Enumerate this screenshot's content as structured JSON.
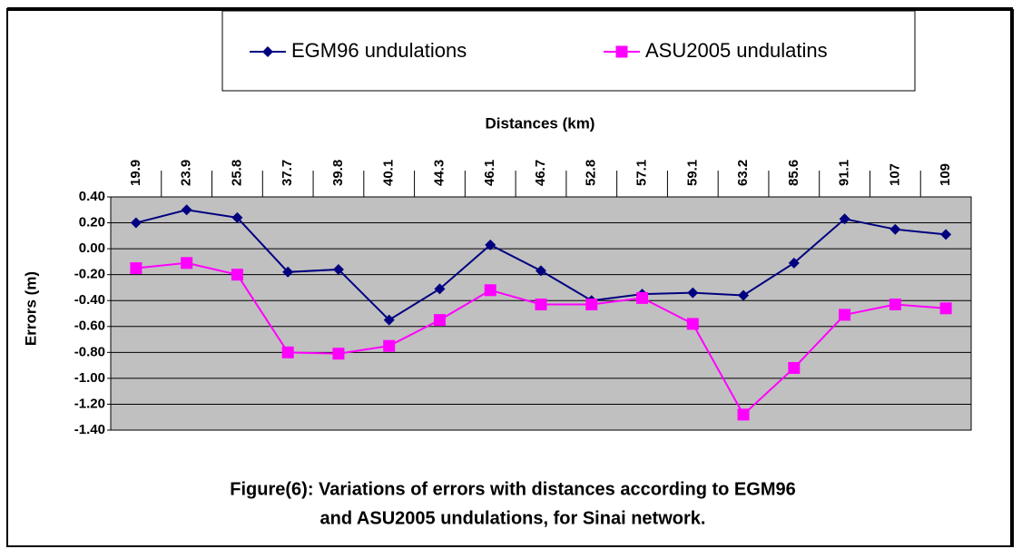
{
  "chart_data": {
    "type": "line",
    "legend_position": "top",
    "x_axis_label": "Distances (km)",
    "y_axis_label": "Errors (m)",
    "caption": [
      "Figure(6): Variations of errors with distances according to EGM96",
      "and ASU2005 undulations, for Sinai network."
    ],
    "categories": [
      "19.9",
      "23.9",
      "25.8",
      "37.7",
      "39.8",
      "40.1",
      "44.3",
      "46.1",
      "46.7",
      "52.8",
      "57.1",
      "59.1",
      "63.2",
      "85.6",
      "91.1",
      "107",
      "109"
    ],
    "series": [
      {
        "name": "EGM96 undulations",
        "color": "#000080",
        "marker": "diamond",
        "values": [
          0.2,
          0.3,
          0.24,
          -0.18,
          -0.16,
          -0.55,
          -0.31,
          0.03,
          -0.17,
          -0.4,
          -0.35,
          -0.34,
          -0.36,
          -0.11,
          0.23,
          0.15,
          0.11
        ]
      },
      {
        "name": "ASU2005 undulatins",
        "color": "#ff00ff",
        "marker": "square",
        "values": [
          -0.15,
          -0.11,
          -0.2,
          -0.8,
          -0.81,
          -0.75,
          -0.55,
          -0.32,
          -0.43,
          -0.43,
          -0.38,
          -0.58,
          -1.28,
          -0.92,
          -0.51,
          -0.43,
          -0.46
        ]
      }
    ],
    "ylim": [
      -1.4,
      0.4
    ],
    "yticks": [
      {
        "value": 0.4,
        "label": "0.40"
      },
      {
        "value": 0.2,
        "label": "0.20"
      },
      {
        "value": 0,
        "label": "0.00"
      },
      {
        "value": -0.2,
        "label": "-0.20"
      },
      {
        "value": -0.4,
        "label": "-0.40"
      },
      {
        "value": -0.6,
        "label": "-0.60"
      },
      {
        "value": -0.8,
        "label": "-0.80"
      },
      {
        "value": -1,
        "label": "-1.00"
      },
      {
        "value": -1.2,
        "label": "-1.20"
      },
      {
        "value": -1.4,
        "label": "-1.40"
      }
    ],
    "grid": true,
    "plot_background": "#c0c0c0"
  }
}
